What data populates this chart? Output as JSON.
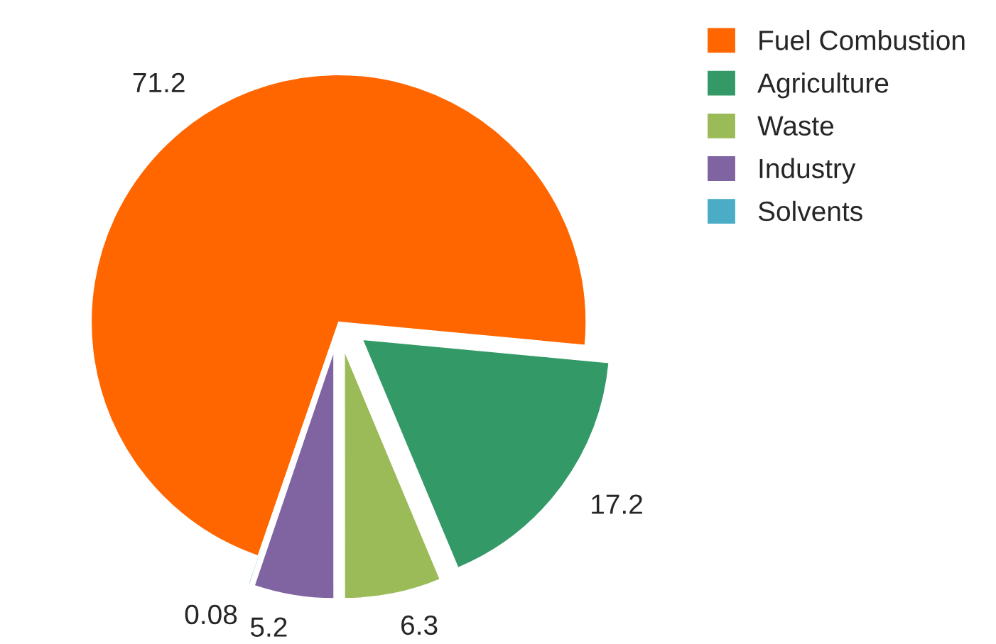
{
  "chart_data": {
    "type": "pie",
    "categories": [
      "Fuel Combustion",
      "Agriculture",
      "Waste",
      "Industry",
      "Solvents"
    ],
    "values": [
      71.2,
      17.2,
      6.3,
      5.2,
      0.08
    ],
    "colors": [
      "#ff6600",
      "#339966",
      "#9bbb59",
      "#8064a2",
      "#4bacc6"
    ],
    "data_labels": true,
    "legend": "top right"
  }
}
